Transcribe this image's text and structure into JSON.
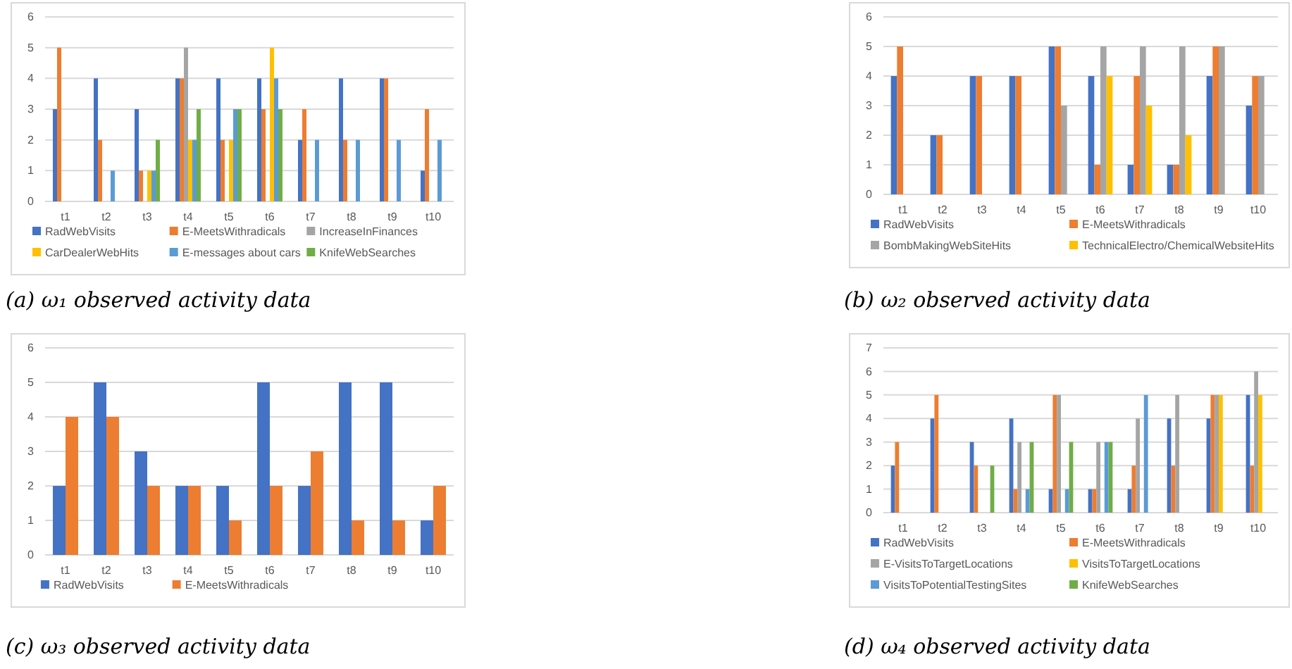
{
  "chart_data": [
    {
      "type": "bar",
      "title": "(a) ω₁ observed activity data",
      "categories": [
        "t1",
        "t2",
        "t3",
        "t4",
        "t5",
        "t6",
        "t7",
        "t8",
        "t9",
        "t10"
      ],
      "ylim": [
        0,
        6
      ],
      "yticks": [
        0,
        1,
        2,
        3,
        4,
        5,
        6
      ],
      "grid": "y",
      "legend": "bottom",
      "series": [
        {
          "name": "RadWebVisits",
          "color": "#4472c4",
          "values": [
            3,
            4,
            3,
            4,
            4,
            4,
            2,
            4,
            4,
            1
          ]
        },
        {
          "name": "E-MeetsWithradicals",
          "color": "#ed7d31",
          "values": [
            5,
            2,
            1,
            4,
            2,
            3,
            3,
            2,
            4,
            3
          ]
        },
        {
          "name": "IncreaseInFinances",
          "color": "#a5a5a5",
          "values": [
            0,
            0,
            0,
            5,
            0,
            0,
            0,
            0,
            0,
            0
          ]
        },
        {
          "name": "CarDealerWebHits",
          "color": "#ffc000",
          "values": [
            0,
            0,
            1,
            2,
            2,
            5,
            0,
            0,
            0,
            0
          ]
        },
        {
          "name": "E-messages about cars",
          "color": "#5b9bd5",
          "values": [
            0,
            1,
            1,
            2,
            3,
            4,
            2,
            2,
            2,
            2
          ]
        },
        {
          "name": "KnifeWebSearches",
          "color": "#70ad47",
          "values": [
            0,
            0,
            2,
            3,
            3,
            3,
            0,
            0,
            0,
            0
          ]
        }
      ]
    },
    {
      "type": "bar",
      "title": "(b) ω₂ observed activity data",
      "categories": [
        "t1",
        "t2",
        "t3",
        "t4",
        "t5",
        "t6",
        "t7",
        "t8",
        "t9",
        "t10"
      ],
      "ylim": [
        0,
        6
      ],
      "yticks": [
        0,
        1,
        2,
        3,
        4,
        5,
        6
      ],
      "grid": "y",
      "legend": "bottom",
      "series": [
        {
          "name": "RadWebVisits",
          "color": "#4472c4",
          "values": [
            4,
            2,
            4,
            4,
            5,
            4,
            1,
            1,
            4,
            3
          ]
        },
        {
          "name": "E-MeetsWithradicals",
          "color": "#ed7d31",
          "values": [
            5,
            2,
            4,
            4,
            5,
            1,
            4,
            1,
            5,
            4
          ]
        },
        {
          "name": "BombMakingWebSiteHits",
          "color": "#a5a5a5",
          "values": [
            0,
            0,
            0,
            0,
            3,
            5,
            5,
            5,
            5,
            4
          ]
        },
        {
          "name": "TechnicalElectro/ChemicalWebsiteHits",
          "color": "#ffc000",
          "values": [
            0,
            0,
            0,
            0,
            0,
            4,
            3,
            2,
            0,
            0
          ]
        }
      ]
    },
    {
      "type": "bar",
      "title": "(c) ω₃ observed activity data",
      "categories": [
        "t1",
        "t2",
        "t3",
        "t4",
        "t5",
        "t6",
        "t7",
        "t8",
        "t9",
        "t10"
      ],
      "ylim": [
        0,
        6
      ],
      "yticks": [
        0,
        1,
        2,
        3,
        4,
        5,
        6
      ],
      "grid": "y",
      "legend": "bottom",
      "series": [
        {
          "name": "RadWebVisits",
          "color": "#4472c4",
          "values": [
            2,
            5,
            3,
            2,
            2,
            5,
            2,
            5,
            5,
            1
          ]
        },
        {
          "name": "E-MeetsWithradicals",
          "color": "#ed7d31",
          "values": [
            4,
            4,
            2,
            2,
            1,
            2,
            3,
            1,
            1,
            2
          ]
        }
      ]
    },
    {
      "type": "bar",
      "title": "(d) ω₄ observed activity data",
      "categories": [
        "t1",
        "t2",
        "t3",
        "t4",
        "t5",
        "t6",
        "t7",
        "t8",
        "t9",
        "t10"
      ],
      "ylim": [
        0,
        7
      ],
      "yticks": [
        0,
        1,
        2,
        3,
        4,
        5,
        6,
        7
      ],
      "grid": "y",
      "legend": "bottom",
      "series": [
        {
          "name": "RadWebVisits",
          "color": "#4472c4",
          "values": [
            2,
            4,
            3,
            4,
            1,
            1,
            1,
            4,
            4,
            5
          ]
        },
        {
          "name": "E-MeetsWithradicals",
          "color": "#ed7d31",
          "values": [
            3,
            5,
            2,
            1,
            5,
            1,
            2,
            2,
            5,
            2
          ]
        },
        {
          "name": "E-VisitsToTargetLocations",
          "color": "#a5a5a5",
          "values": [
            0,
            0,
            0,
            3,
            5,
            3,
            4,
            5,
            5,
            6
          ]
        },
        {
          "name": "VisitsToTargetLocations",
          "color": "#ffc000",
          "values": [
            0,
            0,
            0,
            0,
            0,
            0,
            0,
            0,
            5,
            5
          ]
        },
        {
          "name": "VisitsToPotentialTestingSites",
          "color": "#5b9bd5",
          "values": [
            0,
            0,
            0,
            1,
            1,
            3,
            5,
            0,
            0,
            0
          ]
        },
        {
          "name": "KnifeWebSearches",
          "color": "#70ad47",
          "values": [
            0,
            0,
            2,
            3,
            3,
            3,
            0,
            0,
            0,
            0
          ]
        }
      ]
    }
  ]
}
